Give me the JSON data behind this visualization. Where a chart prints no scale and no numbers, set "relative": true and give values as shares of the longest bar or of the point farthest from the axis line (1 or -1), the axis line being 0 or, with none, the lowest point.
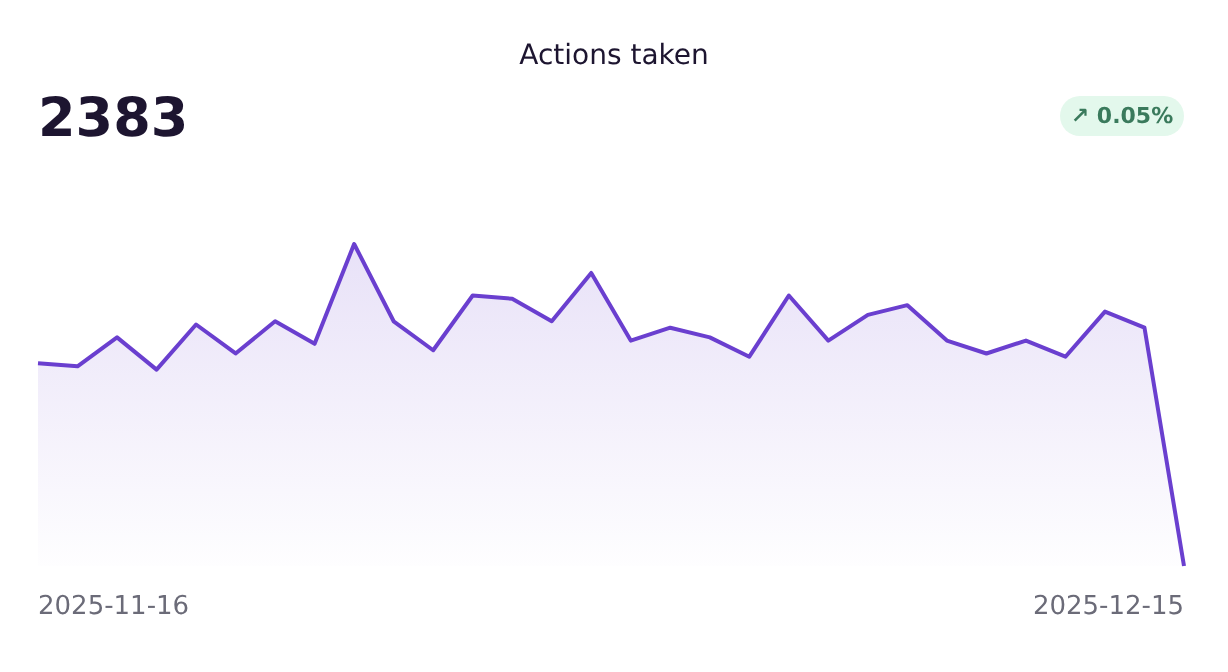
{
  "chart_data": {
    "type": "area",
    "title": "Actions taken",
    "relative": true,
    "annotations": [
      "2383",
      "↗ 0.05%",
      "2025-11-16",
      "2025-12-15"
    ],
    "categories": [
      null,
      null,
      null,
      null,
      null,
      null,
      null,
      null,
      null,
      null,
      null,
      null,
      null,
      null,
      null,
      null,
      null,
      null,
      null,
      null,
      null,
      null,
      null,
      null,
      null,
      null,
      null,
      null,
      null,
      null
    ],
    "series": [
      {
        "color": "#6a3fcf",
        "values": [
          0.63,
          0.62,
          0.71,
          0.61,
          0.75,
          0.66,
          0.76,
          0.69,
          1,
          0.76,
          0.67,
          0.84,
          0.83,
          0.76,
          0.91,
          0.7,
          0.74,
          0.71,
          0.65,
          0.84,
          0.7,
          0.78,
          0.81,
          0.7,
          0.66,
          0.7,
          0.65,
          0.79,
          0.74,
          0
        ]
      }
    ],
    "grid": false,
    "marker": "none",
    "line_style": "solid"
  }
}
